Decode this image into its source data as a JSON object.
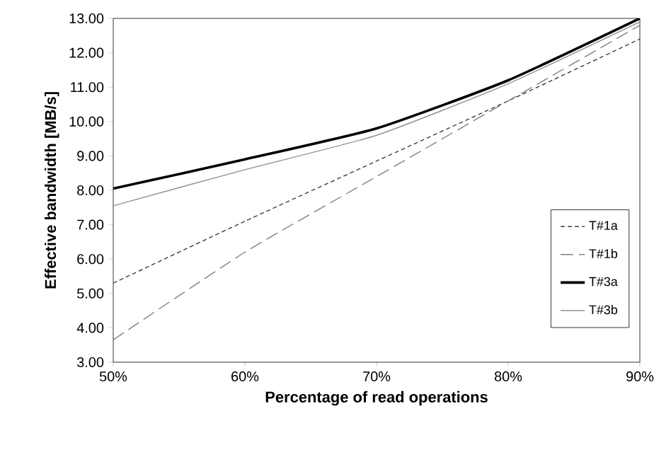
{
  "chart_data": {
    "type": "line",
    "xlabel": "Percentage of read operations",
    "ylabel": "Effective bandwidth [MB/s]",
    "x": [
      50,
      60,
      70,
      80,
      90
    ],
    "xlim": [
      50,
      90
    ],
    "ylim": [
      3,
      13
    ],
    "xticks": [
      {
        "value": 50,
        "label": "50%"
      },
      {
        "value": 60,
        "label": "60%"
      },
      {
        "value": 70,
        "label": "70%"
      },
      {
        "value": 80,
        "label": "80%"
      },
      {
        "value": 90,
        "label": "90%"
      }
    ],
    "yticks": [
      {
        "value": 3,
        "label": "3.00"
      },
      {
        "value": 4,
        "label": "4.00"
      },
      {
        "value": 5,
        "label": "5.00"
      },
      {
        "value": 6,
        "label": "6.00"
      },
      {
        "value": 7,
        "label": "7.00"
      },
      {
        "value": 8,
        "label": "8.00"
      },
      {
        "value": 9,
        "label": "9.00"
      },
      {
        "value": 10,
        "label": "10.00"
      },
      {
        "value": 11,
        "label": "11.00"
      },
      {
        "value": 12,
        "label": "12.00"
      },
      {
        "value": 13,
        "label": "13.00"
      }
    ],
    "series": [
      {
        "name": "T#1a",
        "color": "#404040",
        "line_style": "dotted",
        "values": [
          5.3,
          7.1,
          8.85,
          10.6,
          12.4
        ]
      },
      {
        "name": "T#1b",
        "color": "#808080",
        "line_style": "dashed",
        "values": [
          3.65,
          6.2,
          8.4,
          10.6,
          12.8
        ]
      },
      {
        "name": "T#3a",
        "color": "#000000",
        "line_style": "solid",
        "values": [
          8.05,
          8.9,
          9.8,
          11.2,
          13.0
        ]
      },
      {
        "name": "T#3b",
        "color": "#909090",
        "line_style": "solid",
        "values": [
          7.55,
          8.6,
          9.6,
          11.1,
          12.9
        ]
      }
    ],
    "legend": "right",
    "grid": false,
    "marker": "none"
  }
}
